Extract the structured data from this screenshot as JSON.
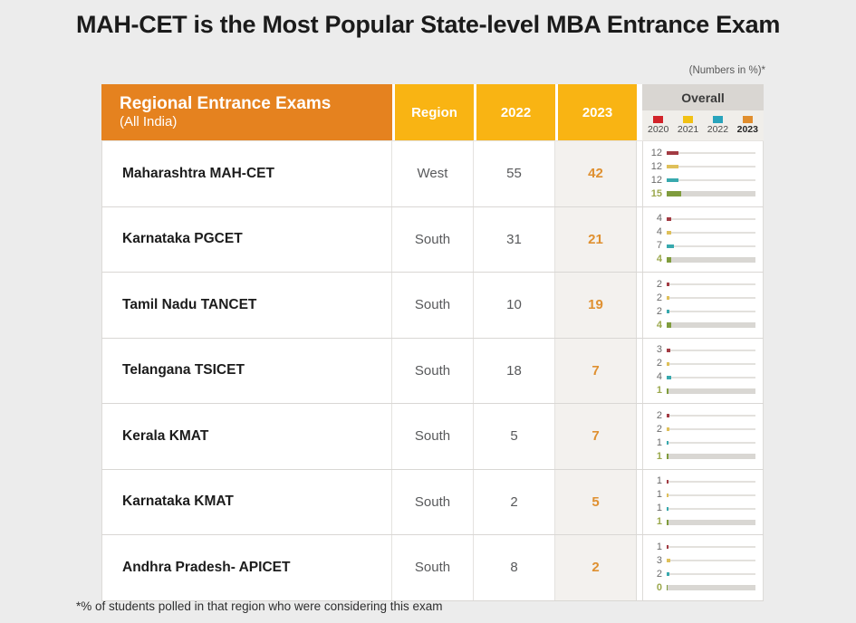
{
  "title": "MAH-CET is the Most Popular State-level MBA Entrance Exam",
  "note": "(Numbers in %)*",
  "footnote": "*% of students polled in that region who were considering this exam",
  "table": {
    "header": {
      "col1_title": "Regional Entrance Exams",
      "col1_subtitle": "(All India)",
      "region": "Region",
      "y2022": "2022",
      "y2023": "2023",
      "overall": "Overall"
    },
    "legend": [
      {
        "year": "2020",
        "color": "#D2232A",
        "bold": false
      },
      {
        "year": "2021",
        "color": "#F2C114",
        "bold": false
      },
      {
        "year": "2022",
        "color": "#29A4BC",
        "bold": false
      },
      {
        "year": "2023",
        "color": "#E08E2D",
        "bold": true
      }
    ]
  },
  "chart_data": {
    "type": "table",
    "title": "MAH-CET is the Most Popular State-level MBA Entrance Exam",
    "units_note": "(Numbers in %)*",
    "footnote": "*% of students polled in that region who were considering this exam",
    "columns": [
      "Regional Entrance Exams (All India)",
      "Region",
      "2022",
      "2023",
      "Overall"
    ],
    "overall_mini_chart": {
      "type": "bar",
      "series_years": [
        "2020",
        "2021",
        "2022",
        "2023"
      ],
      "axis_max": 100,
      "legend_position": "top"
    },
    "rows": [
      {
        "exam": "Maharashtra MAH-CET",
        "region": "West",
        "y2022": 55,
        "y2023": 42,
        "overall": [
          12,
          12,
          12,
          15
        ]
      },
      {
        "exam": "Karnataka PGCET",
        "region": "South",
        "y2022": 31,
        "y2023": 21,
        "overall": [
          4,
          4,
          7,
          4
        ]
      },
      {
        "exam": "Tamil Nadu TANCET",
        "region": "South",
        "y2022": 10,
        "y2023": 19,
        "overall": [
          2,
          2,
          2,
          4
        ]
      },
      {
        "exam": "Telangana TSICET",
        "region": "South",
        "y2022": 18,
        "y2023": 7,
        "overall": [
          3,
          2,
          4,
          1
        ]
      },
      {
        "exam": "Kerala KMAT",
        "region": "South",
        "y2022": 5,
        "y2023": 7,
        "overall": [
          2,
          2,
          1,
          1
        ]
      },
      {
        "exam": "Karnataka KMAT",
        "region": "South",
        "y2022": 2,
        "y2023": 5,
        "overall": [
          1,
          1,
          1,
          1
        ]
      },
      {
        "exam": "Andhra Pradesh- APICET",
        "region": "South",
        "y2022": 8,
        "y2023": 2,
        "overall": [
          1,
          3,
          2,
          0
        ]
      }
    ]
  },
  "colors": {
    "page_background": "#ECECEC",
    "header_orange": "#E5821F",
    "header_gold": "#F9B413",
    "overall_header_gray": "#D9D6D2",
    "accent_2023_value": "#DF9030",
    "mini_value_green": "#9BA84D",
    "legend_colors": [
      "#D2232A",
      "#F2C114",
      "#29A4BC",
      "#E08E2D"
    ],
    "mini_bar_colors": [
      "#A23B43",
      "#DFC05A",
      "#38A9AE",
      "#7F9C3D"
    ]
  }
}
